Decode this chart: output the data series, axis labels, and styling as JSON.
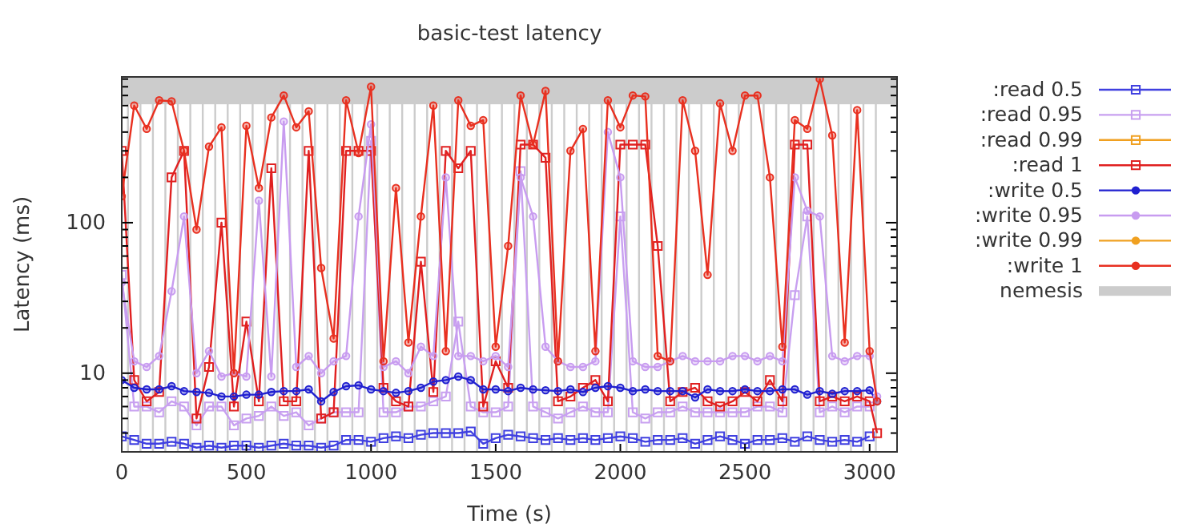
{
  "chart_data": {
    "type": "line",
    "title": "basic-test latency",
    "xlabel": "Time (s)",
    "ylabel": "Latency (ms)",
    "x": [
      0,
      50,
      100,
      150,
      200,
      250,
      300,
      350,
      400,
      450,
      500,
      550,
      600,
      650,
      700,
      750,
      800,
      850,
      900,
      950,
      1000,
      1050,
      1100,
      1150,
      1200,
      1250,
      1300,
      1350,
      1400,
      1450,
      1500,
      1550,
      1600,
      1650,
      1700,
      1750,
      1800,
      1850,
      1900,
      1950,
      2000,
      2050,
      2100,
      2150,
      2200,
      2250,
      2300,
      2350,
      2400,
      2450,
      2500,
      2550,
      2600,
      2650,
      2700,
      2750,
      2800,
      2850,
      2900,
      2950,
      3000,
      3030
    ],
    "log": "y",
    "xlim": [
      0,
      3110
    ],
    "ylim": [
      3,
      930
    ],
    "xticks": [
      0,
      500,
      1000,
      1500,
      2000,
      2500,
      3000
    ],
    "yticks": [
      {
        "value": 3,
        "label": null
      },
      {
        "value": 4,
        "label": null
      },
      {
        "value": 5,
        "label": null
      },
      {
        "value": 6,
        "label": null
      },
      {
        "value": 7,
        "label": null
      },
      {
        "value": 8,
        "label": null
      },
      {
        "value": 9,
        "label": null
      },
      10,
      {
        "value": 20,
        "label": null
      },
      {
        "value": 30,
        "label": null
      },
      {
        "value": 40,
        "label": null
      },
      {
        "value": 50,
        "label": null
      },
      {
        "value": 60,
        "label": null
      },
      {
        "value": 70,
        "label": null
      },
      {
        "value": 80,
        "label": null
      },
      {
        "value": 90,
        "label": null
      },
      100,
      {
        "value": 200,
        "label": null
      },
      {
        "value": 300,
        "label": null
      },
      {
        "value": 400,
        "label": null
      },
      {
        "value": 500,
        "label": null
      },
      {
        "value": 600,
        "label": null
      },
      {
        "value": 700,
        "label": null
      },
      {
        "value": 800,
        "label": null
      },
      {
        "value": 900,
        "label": null
      }
    ],
    "grid": false,
    "legend": "right",
    "line_style": "solid",
    "bands": [
      {
        "axis": "y",
        "from": 612,
        "to": 930,
        "label": "nemesis",
        "color": "#cccccc"
      }
    ],
    "ref_lines": [
      {
        "axis": "x",
        "value": 25,
        "color": "#cccccc"
      },
      {
        "axis": "x",
        "value": 75,
        "color": "#cccccc"
      },
      {
        "axis": "x",
        "value": 125,
        "color": "#cccccc"
      },
      {
        "axis": "x",
        "value": 175,
        "color": "#cccccc"
      },
      {
        "axis": "x",
        "value": 225,
        "color": "#cccccc"
      },
      {
        "axis": "x",
        "value": 275,
        "color": "#cccccc"
      },
      {
        "axis": "x",
        "value": 325,
        "color": "#cccccc"
      },
      {
        "axis": "x",
        "value": 375,
        "color": "#cccccc"
      },
      {
        "axis": "x",
        "value": 425,
        "color": "#cccccc"
      },
      {
        "axis": "x",
        "value": 475,
        "color": "#cccccc"
      },
      {
        "axis": "x",
        "value": 525,
        "color": "#cccccc"
      },
      {
        "axis": "x",
        "value": 575,
        "color": "#cccccc"
      },
      {
        "axis": "x",
        "value": 625,
        "color": "#cccccc"
      },
      {
        "axis": "x",
        "value": 675,
        "color": "#cccccc"
      },
      {
        "axis": "x",
        "value": 725,
        "color": "#cccccc"
      },
      {
        "axis": "x",
        "value": 775,
        "color": "#cccccc"
      },
      {
        "axis": "x",
        "value": 825,
        "color": "#cccccc"
      },
      {
        "axis": "x",
        "value": 875,
        "color": "#cccccc"
      },
      {
        "axis": "x",
        "value": 925,
        "color": "#cccccc"
      },
      {
        "axis": "x",
        "value": 975,
        "color": "#cccccc"
      },
      {
        "axis": "x",
        "value": 1025,
        "color": "#cccccc"
      },
      {
        "axis": "x",
        "value": 1075,
        "color": "#cccccc"
      },
      {
        "axis": "x",
        "value": 1125,
        "color": "#cccccc"
      },
      {
        "axis": "x",
        "value": 1175,
        "color": "#cccccc"
      },
      {
        "axis": "x",
        "value": 1225,
        "color": "#cccccc"
      },
      {
        "axis": "x",
        "value": 1275,
        "color": "#cccccc"
      },
      {
        "axis": "x",
        "value": 1325,
        "color": "#cccccc"
      },
      {
        "axis": "x",
        "value": 1375,
        "color": "#cccccc"
      },
      {
        "axis": "x",
        "value": 1425,
        "color": "#cccccc"
      },
      {
        "axis": "x",
        "value": 1475,
        "color": "#cccccc"
      },
      {
        "axis": "x",
        "value": 1525,
        "color": "#cccccc"
      },
      {
        "axis": "x",
        "value": 1575,
        "color": "#cccccc"
      },
      {
        "axis": "x",
        "value": 1625,
        "color": "#cccccc"
      },
      {
        "axis": "x",
        "value": 1675,
        "color": "#cccccc"
      },
      {
        "axis": "x",
        "value": 1725,
        "color": "#cccccc"
      },
      {
        "axis": "x",
        "value": 1775,
        "color": "#cccccc"
      },
      {
        "axis": "x",
        "value": 1825,
        "color": "#cccccc"
      },
      {
        "axis": "x",
        "value": 1875,
        "color": "#cccccc"
      },
      {
        "axis": "x",
        "value": 1925,
        "color": "#cccccc"
      },
      {
        "axis": "x",
        "value": 1975,
        "color": "#cccccc"
      },
      {
        "axis": "x",
        "value": 2025,
        "color": "#cccccc"
      },
      {
        "axis": "x",
        "value": 2075,
        "color": "#cccccc"
      },
      {
        "axis": "x",
        "value": 2125,
        "color": "#cccccc"
      },
      {
        "axis": "x",
        "value": 2175,
        "color": "#cccccc"
      },
      {
        "axis": "x",
        "value": 2225,
        "color": "#cccccc"
      },
      {
        "axis": "x",
        "value": 2275,
        "color": "#cccccc"
      },
      {
        "axis": "x",
        "value": 2325,
        "color": "#cccccc"
      },
      {
        "axis": "x",
        "value": 2375,
        "color": "#cccccc"
      },
      {
        "axis": "x",
        "value": 2425,
        "color": "#cccccc"
      },
      {
        "axis": "x",
        "value": 2475,
        "color": "#cccccc"
      },
      {
        "axis": "x",
        "value": 2525,
        "color": "#cccccc"
      },
      {
        "axis": "x",
        "value": 2575,
        "color": "#cccccc"
      },
      {
        "axis": "x",
        "value": 2625,
        "color": "#cccccc"
      },
      {
        "axis": "x",
        "value": 2675,
        "color": "#cccccc"
      },
      {
        "axis": "x",
        "value": 2725,
        "color": "#cccccc"
      },
      {
        "axis": "x",
        "value": 2775,
        "color": "#cccccc"
      },
      {
        "axis": "x",
        "value": 2825,
        "color": "#cccccc"
      },
      {
        "axis": "x",
        "value": 2875,
        "color": "#cccccc"
      },
      {
        "axis": "x",
        "value": 2925,
        "color": "#cccccc"
      },
      {
        "axis": "x",
        "value": 2975,
        "color": "#cccccc"
      },
      {
        "axis": "x",
        "value": 3025,
        "color": "#cccccc"
      }
    ],
    "series": [
      {
        "name": ":read 0.5",
        "color": "#4040e0",
        "marker": "square",
        "values": [
          3.8,
          3.6,
          3.4,
          3.4,
          3.5,
          3.4,
          3.2,
          3.3,
          3.2,
          3.3,
          3.3,
          3.2,
          3.3,
          3.4,
          3.3,
          3.3,
          3.2,
          3.3,
          3.6,
          3.6,
          3.5,
          3.7,
          3.8,
          3.7,
          3.9,
          4,
          4,
          4,
          4.1,
          3.4,
          3.7,
          3.9,
          3.8,
          3.7,
          3.6,
          3.7,
          3.6,
          3.7,
          3.6,
          3.7,
          3.8,
          3.7,
          3.5,
          3.6,
          3.6,
          3.7,
          3.4,
          3.6,
          3.8,
          3.6,
          3.4,
          3.6,
          3.6,
          3.7,
          3.5,
          3.8,
          3.6,
          3.5,
          3.6,
          3.5,
          3.8,
          null
        ]
      },
      {
        "name": ":read 0.95",
        "color": "#c8a0f0",
        "marker": "square",
        "values": [
          45,
          6,
          6,
          5.5,
          6.5,
          6,
          4.5,
          6,
          6,
          4.5,
          5,
          5.2,
          6,
          5.2,
          5.5,
          4.5,
          5,
          5.5,
          5.5,
          5.5,
          350,
          5.5,
          5.5,
          6,
          6,
          6.5,
          7,
          22,
          6,
          5.5,
          5.5,
          6,
          220,
          6,
          5.5,
          5,
          5.5,
          6,
          5.5,
          5.5,
          110,
          5.5,
          5,
          5.5,
          5.5,
          6,
          5.5,
          5.5,
          5.5,
          5.5,
          5.5,
          6,
          6,
          5.5,
          33,
          110,
          5.5,
          6,
          5.5,
          6,
          6,
          null
        ]
      },
      {
        "name": ":read 0.99",
        "color": "#f0a020",
        "marker": "square",
        "values": [
          null,
          null,
          null,
          null,
          null,
          null,
          null,
          null,
          null,
          null,
          null,
          null,
          null,
          null,
          null,
          null,
          null,
          null,
          null,
          null,
          null,
          null,
          null,
          null,
          null,
          null,
          null,
          null,
          null,
          null,
          null,
          null,
          null,
          null,
          null,
          null,
          null,
          null,
          null,
          null,
          null,
          null,
          null,
          null,
          null,
          null,
          null,
          null,
          null,
          null,
          null,
          null,
          null,
          null,
          null,
          null,
          null,
          null,
          null,
          null,
          null,
          null
        ]
      },
      {
        "name": ":read 1",
        "color": "#e02020",
        "marker": "square",
        "values": [
          300,
          9,
          6.5,
          7.5,
          200,
          300,
          5,
          11,
          100,
          6,
          22,
          6.5,
          230,
          6.5,
          6.5,
          300,
          5,
          5.5,
          300,
          300,
          300,
          8,
          6.5,
          6,
          55,
          7.5,
          300,
          230,
          300,
          6,
          12,
          8,
          330,
          330,
          270,
          6.5,
          7,
          8,
          9,
          6.5,
          330,
          330,
          330,
          70,
          6.5,
          7.5,
          8,
          6.5,
          6,
          6.5,
          7.5,
          6.5,
          9,
          6.5,
          330,
          330,
          6.5,
          7,
          6.5,
          7,
          6.5,
          4
        ]
      },
      {
        "name": ":write 0.5",
        "color": "#2020d0",
        "marker": "circle",
        "values": [
          9,
          8,
          7.8,
          7.8,
          8.2,
          7.6,
          7.5,
          7.4,
          7,
          7,
          7.2,
          7.2,
          7.5,
          7.6,
          7.6,
          7.8,
          6.5,
          7.5,
          8.2,
          8.3,
          7.8,
          7.6,
          7.4,
          7.6,
          8,
          8.8,
          9,
          9.5,
          9,
          7.8,
          7.8,
          7.6,
          8,
          7.8,
          7.7,
          7.6,
          7.8,
          7.5,
          8,
          8.2,
          8,
          7.6,
          7.8,
          7.6,
          7.6,
          7.6,
          6.9,
          7.8,
          7.6,
          7.6,
          7.8,
          7.6,
          7.6,
          7.8,
          7.8,
          7.2,
          7.6,
          7.3,
          7.6,
          7.6,
          7.7,
          6.5
        ]
      },
      {
        "name": ":write 0.95",
        "color": "#c89cf0",
        "marker": "circle",
        "values": [
          40,
          12,
          11,
          13,
          35,
          110,
          10,
          14,
          9.5,
          10,
          9.5,
          140,
          9.5,
          470,
          11,
          13,
          10,
          12,
          13,
          110,
          450,
          11,
          12,
          10,
          15,
          13,
          200,
          13,
          13,
          12,
          13,
          11,
          200,
          110,
          15,
          12,
          11,
          11,
          12,
          400,
          200,
          12,
          11,
          11,
          12,
          13,
          12,
          12,
          12,
          13,
          13,
          12,
          13,
          12,
          200,
          120,
          110,
          13,
          12,
          13,
          13,
          7
        ]
      },
      {
        "name": ":write 0.99",
        "color": "#f0a020",
        "marker": "circle",
        "values": [
          null,
          null,
          null,
          null,
          null,
          null,
          null,
          null,
          null,
          null,
          null,
          null,
          null,
          null,
          null,
          null,
          null,
          null,
          null,
          null,
          null,
          null,
          null,
          null,
          null,
          null,
          null,
          null,
          null,
          null,
          null,
          null,
          null,
          null,
          null,
          null,
          null,
          null,
          null,
          null,
          null,
          null,
          null,
          null,
          null,
          null,
          null,
          null,
          null,
          null,
          null,
          null,
          null,
          null,
          null,
          null,
          null,
          null,
          null,
          null,
          null,
          null
        ]
      },
      {
        "name": ":write 1",
        "color": "#e83020",
        "marker": "circle",
        "values": [
          150,
          600,
          420,
          650,
          640,
          300,
          90,
          320,
          430,
          10,
          440,
          170,
          500,
          700,
          430,
          550,
          50,
          17,
          650,
          290,
          800,
          12,
          170,
          16,
          110,
          600,
          14,
          650,
          440,
          480,
          15,
          70,
          700,
          330,
          750,
          12,
          300,
          420,
          14,
          650,
          430,
          700,
          690,
          13,
          12,
          650,
          300,
          45,
          620,
          300,
          700,
          700,
          200,
          15,
          480,
          420,
          900,
          380,
          16,
          560,
          14,
          6.5
        ]
      }
    ]
  }
}
